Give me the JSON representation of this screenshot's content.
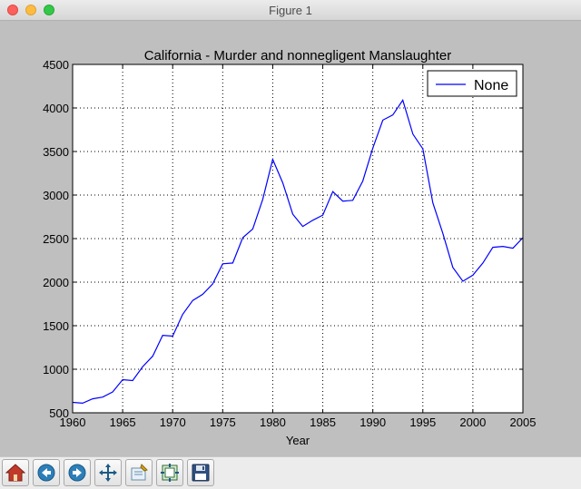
{
  "window": {
    "title": "Figure 1"
  },
  "chart_data": {
    "type": "line",
    "title": "California - Murder and nonnegligent Manslaughter",
    "xlabel": "Year",
    "ylabel": "",
    "xlim": [
      1960,
      2005
    ],
    "ylim": [
      500,
      4500
    ],
    "xticks": [
      1960,
      1965,
      1970,
      1975,
      1980,
      1985,
      1990,
      1995,
      2000,
      2005
    ],
    "yticks": [
      500,
      1000,
      1500,
      2000,
      2500,
      3000,
      3500,
      4000,
      4500
    ],
    "grid": true,
    "legend_position": "top-right",
    "series": [
      {
        "name": "None",
        "color": "#0000ff",
        "x": [
          1960,
          1961,
          1962,
          1963,
          1964,
          1965,
          1966,
          1967,
          1968,
          1969,
          1970,
          1971,
          1972,
          1973,
          1974,
          1975,
          1976,
          1977,
          1978,
          1979,
          1980,
          1981,
          1982,
          1983,
          1984,
          1985,
          1986,
          1987,
          1988,
          1989,
          1990,
          1991,
          1992,
          1993,
          1994,
          1995,
          1996,
          1997,
          1998,
          1999,
          2000,
          2001,
          2002,
          2003,
          2004,
          2005
        ],
        "y": [
          620,
          610,
          660,
          680,
          740,
          880,
          870,
          1030,
          1150,
          1390,
          1380,
          1630,
          1790,
          1860,
          1980,
          2210,
          2220,
          2510,
          2610,
          2950,
          3410,
          3140,
          2780,
          2640,
          2710,
          2770,
          3040,
          2930,
          2940,
          3160,
          3540,
          3860,
          3920,
          4090,
          3700,
          3530,
          2910,
          2560,
          2170,
          2010,
          2080,
          2220,
          2400,
          2410,
          2390,
          2510
        ]
      }
    ]
  },
  "toolbar": {
    "buttons": [
      {
        "name": "home-button",
        "icon": "home-icon"
      },
      {
        "name": "back-button",
        "icon": "back-arrow-icon"
      },
      {
        "name": "forward-button",
        "icon": "forward-arrow-icon"
      },
      {
        "name": "pan-button",
        "icon": "move-icon"
      },
      {
        "name": "zoom-button",
        "icon": "zoom-rect-icon"
      },
      {
        "name": "subplots-button",
        "icon": "subplots-icon"
      },
      {
        "name": "save-button",
        "icon": "floppy-icon"
      }
    ]
  }
}
